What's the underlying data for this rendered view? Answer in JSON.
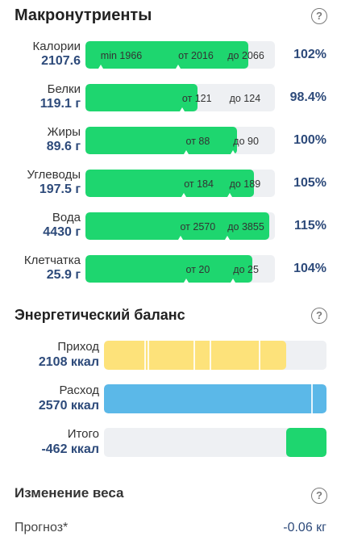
{
  "macros": {
    "title": "Макронутриенты",
    "help": "?",
    "items": [
      {
        "name": "Калории",
        "value": "2107.6",
        "percent": "102%",
        "fill": 0.86,
        "marks": [
          {
            "text": "min 1966",
            "pos": 0.08
          },
          {
            "text": "от 2016",
            "pos": 0.49
          },
          {
            "text": "до 2066",
            "pos": 0.75
          }
        ]
      },
      {
        "name": "Белки",
        "value": "119.1 г",
        "percent": "98.4%",
        "fill": 0.59,
        "marks": [
          {
            "text": "от 121",
            "pos": 0.51
          },
          {
            "text": "до 124",
            "pos": 0.76
          }
        ]
      },
      {
        "name": "Жиры",
        "value": "89.6 г",
        "percent": "100%",
        "fill": 0.8,
        "marks": [
          {
            "text": "от 88",
            "pos": 0.53
          },
          {
            "text": "до 90",
            "pos": 0.78
          }
        ]
      },
      {
        "name": "Углеводы",
        "value": "197.5 г",
        "percent": "105%",
        "fill": 0.89,
        "marks": [
          {
            "text": "от 184",
            "pos": 0.52
          },
          {
            "text": "до 189",
            "pos": 0.76
          }
        ]
      },
      {
        "name": "Вода",
        "value": "4430 г",
        "percent": "115%",
        "fill": 0.97,
        "marks": [
          {
            "text": "от 2570",
            "pos": 0.5
          },
          {
            "text": "до 3855",
            "pos": 0.75
          }
        ]
      },
      {
        "name": "Клетчатка",
        "value": "25.9 г",
        "percent": "104%",
        "fill": 0.88,
        "marks": [
          {
            "text": "от 20",
            "pos": 0.53
          },
          {
            "text": "до 25",
            "pos": 0.78
          }
        ]
      }
    ]
  },
  "energy": {
    "title": "Энергетический баланс",
    "help": "?",
    "income": {
      "name": "Приход",
      "value": "2108 ккал",
      "fill": 0.82,
      "color": "#fde27a"
    },
    "expense": {
      "name": "Расход",
      "value": "2570 ккал",
      "fill": 1.0,
      "color": "#5bb8e8"
    },
    "total": {
      "name": "Итого",
      "value": "-462 ккал",
      "fill": 0.18,
      "color": "#1ed66f"
    }
  },
  "weight": {
    "title": "Изменение веса",
    "help": "?",
    "forecast_label": "Прогноз*",
    "forecast_value": "-0.06 кг"
  }
}
